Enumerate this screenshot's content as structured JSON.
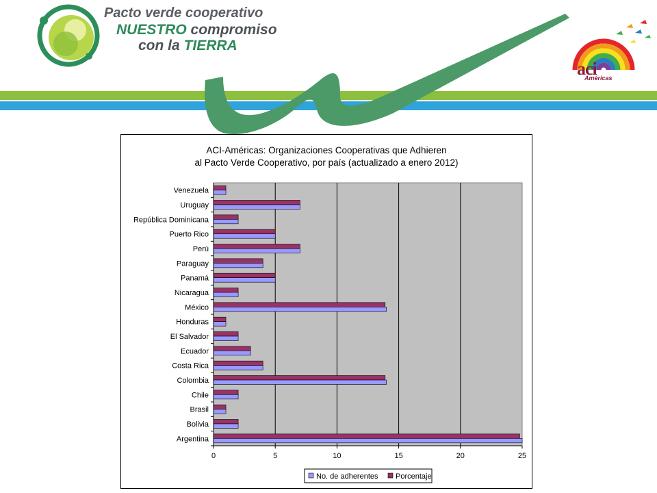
{
  "header": {
    "line1": "Pacto verde cooperativo",
    "line2_a": "NUESTRO",
    "line2_b": " compromiso",
    "line3_a": "con la ",
    "line3_b": "TIERRA",
    "aci_logo": "aci",
    "aci_sub": "Américas",
    "colors": {
      "green_band": "#8dbf3e",
      "blue_band": "#2fa3da",
      "swoosh": "#4c9a68"
    }
  },
  "chart_data": {
    "type": "bar",
    "orientation": "horizontal",
    "title_lines": [
      "ACI-Américas: Organizaciones Cooperativas que Adhieren",
      "al Pacto Verde Cooperativo, por país (actualizado a enero 2012)"
    ],
    "categories": [
      "Venezuela",
      "Uruguay",
      "República Dominicana",
      "Puerto Rico",
      "Perú",
      "Paraguay",
      "Panamá",
      "Nicaragua",
      "México",
      "Honduras",
      "El Salvador",
      "Ecuador",
      "Costa Rica",
      "Colombia",
      "Chile",
      "Brasil",
      "Bolivia",
      "Argentina"
    ],
    "series": [
      {
        "name": "No. de adherentes",
        "color": "#9999ff",
        "values": [
          1,
          7,
          2,
          5,
          7,
          4,
          5,
          2,
          14,
          1,
          2,
          3,
          4,
          14,
          2,
          1,
          2,
          25
        ]
      },
      {
        "name": "Porcentaje",
        "color": "#993366",
        "values": [
          1,
          7,
          2,
          5,
          7,
          4,
          5,
          2,
          13.9,
          1,
          2,
          3,
          4,
          13.9,
          2,
          1,
          2,
          24.8
        ]
      }
    ],
    "xlim": [
      0,
      25
    ],
    "xticks": [
      "0",
      "5",
      "10",
      "15",
      "20",
      "25"
    ],
    "grid": "vertical",
    "plot_background": "#c0c0c0",
    "legend_position": "bottom"
  }
}
